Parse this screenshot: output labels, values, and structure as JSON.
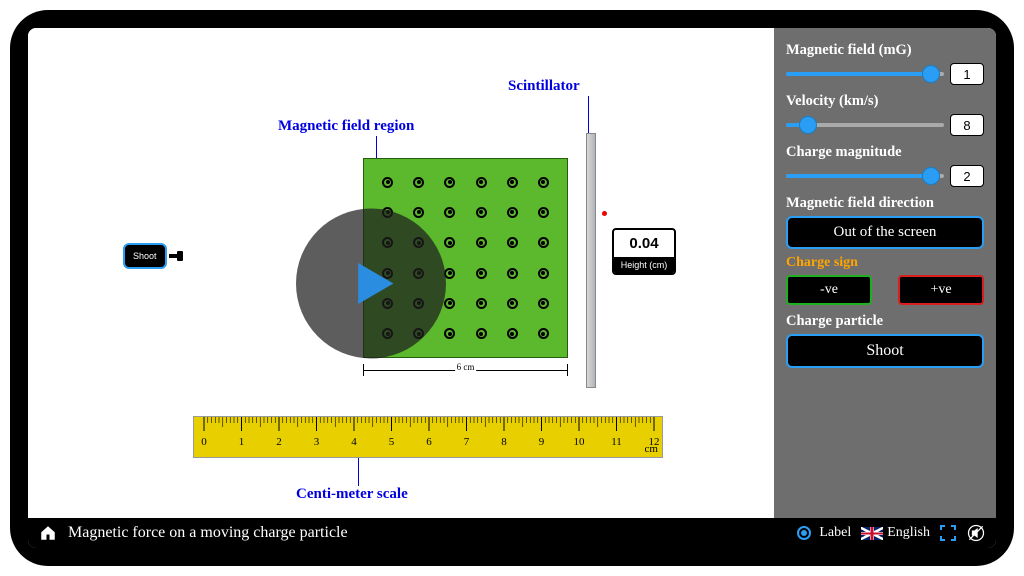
{
  "colors": {
    "accent": "#2a9df4",
    "panel_bg": "#6e6e6e",
    "field_green": "#5cb82c",
    "ruler_yellow": "#e8d000",
    "annotation_blue": "#0000e0",
    "warn_orange": "#ffa500",
    "neg_border": "#1fb01f",
    "pos_border": "#d81e1e"
  },
  "annotations": {
    "field_region": "Magnetic field region",
    "scintillator": "Scintillator",
    "scale": "Centi-meter scale",
    "width_line": "6 cm"
  },
  "shoot_small": "Shoot",
  "height_readout": {
    "value": "0.04",
    "label": "Height (cm)"
  },
  "ruler": {
    "min": 0,
    "max": 12,
    "unit": "cm"
  },
  "controls": {
    "magnetic_field": {
      "label": "Magnetic field (mG)",
      "value": "1",
      "pct": 92
    },
    "velocity": {
      "label": "Velocity (km/s)",
      "value": "8",
      "pct": 14
    },
    "charge_mag": {
      "label": "Charge magnitude",
      "value": "2",
      "pct": 92
    },
    "direction": {
      "label": "Magnetic field direction",
      "button": "Out of the screen"
    },
    "charge_sign": {
      "label": "Charge sign",
      "neg": "-ve",
      "pos": "+ve"
    },
    "charge_particle": {
      "label": "Charge particle",
      "button": "Shoot"
    }
  },
  "bottom": {
    "title": "Magnetic force on a moving charge particle",
    "label_toggle": "Label",
    "language": "English"
  }
}
